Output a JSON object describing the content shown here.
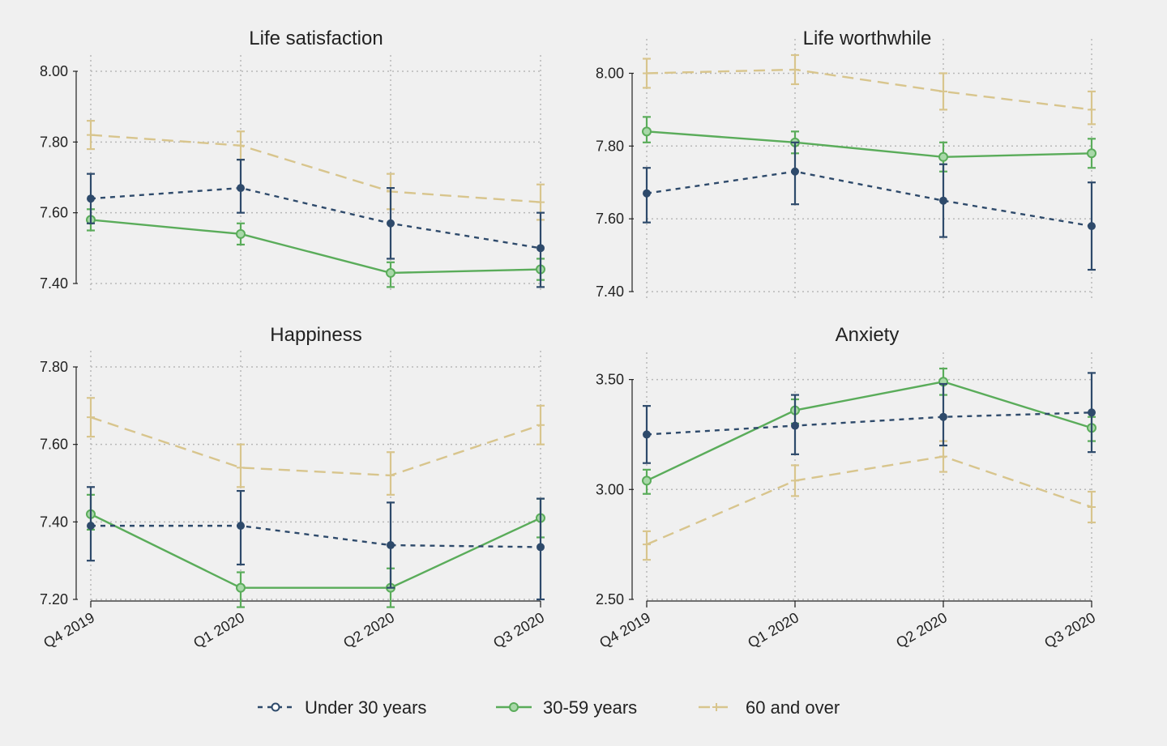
{
  "chart_data": [
    {
      "type": "line",
      "title": "Life satisfaction",
      "categories": [
        "Q4 2019",
        "Q1 2020",
        "Q2 2020",
        "Q3 2020"
      ],
      "ylim": [
        7.4,
        8.0
      ],
      "yticks": [
        7.4,
        7.6,
        7.8,
        8.0
      ],
      "ytick_labels": [
        "7.40",
        "7.60",
        "7.80",
        "8.00"
      ],
      "grid": true,
      "series": [
        {
          "name": "Under 30 years",
          "values": [
            7.64,
            7.67,
            7.57,
            7.5
          ],
          "lower": [
            7.57,
            7.6,
            7.47,
            7.39
          ],
          "upper": [
            7.71,
            7.75,
            7.67,
            7.6
          ]
        },
        {
          "name": "30-59 years",
          "values": [
            7.58,
            7.54,
            7.43,
            7.44
          ],
          "lower": [
            7.55,
            7.51,
            7.39,
            7.41
          ],
          "upper": [
            7.61,
            7.57,
            7.46,
            7.47
          ]
        },
        {
          "name": "60 and over",
          "values": [
            7.82,
            7.79,
            7.66,
            7.63
          ],
          "lower": [
            7.78,
            7.75,
            7.61,
            7.58
          ],
          "upper": [
            7.86,
            7.83,
            7.71,
            7.68
          ]
        }
      ]
    },
    {
      "type": "line",
      "title": "Life worthwhile",
      "categories": [
        "Q4 2019",
        "Q1 2020",
        "Q2 2020",
        "Q3 2020"
      ],
      "ylim": [
        7.4,
        8.05
      ],
      "yticks": [
        7.4,
        7.6,
        7.8,
        8.0
      ],
      "ytick_labels": [
        "7.40",
        "7.60",
        "7.80",
        "8.00"
      ],
      "grid": true,
      "series": [
        {
          "name": "Under 30 years",
          "values": [
            7.67,
            7.73,
            7.65,
            7.58
          ],
          "lower": [
            7.59,
            7.64,
            7.55,
            7.46
          ],
          "upper": [
            7.74,
            7.81,
            7.75,
            7.7
          ]
        },
        {
          "name": "30-59 years",
          "values": [
            7.84,
            7.81,
            7.77,
            7.78
          ],
          "lower": [
            7.81,
            7.78,
            7.73,
            7.74
          ],
          "upper": [
            7.88,
            7.84,
            7.81,
            7.82
          ]
        },
        {
          "name": "60 and over",
          "values": [
            8.0,
            8.01,
            7.95,
            7.9
          ],
          "lower": [
            7.96,
            7.97,
            7.9,
            7.86
          ],
          "upper": [
            8.04,
            8.05,
            8.0,
            7.95
          ]
        }
      ]
    },
    {
      "type": "line",
      "title": "Happiness",
      "categories": [
        "Q4 2019",
        "Q1 2020",
        "Q2 2020",
        "Q3 2020"
      ],
      "ylim": [
        7.2,
        7.8
      ],
      "yticks": [
        7.2,
        7.4,
        7.6,
        7.8
      ],
      "ytick_labels": [
        "7.20",
        "7.40",
        "7.60",
        "7.80"
      ],
      "grid": true,
      "series": [
        {
          "name": "Under 30 years",
          "values": [
            7.39,
            7.39,
            7.34,
            7.335
          ],
          "lower": [
            7.3,
            7.29,
            7.23,
            7.2
          ],
          "upper": [
            7.49,
            7.48,
            7.45,
            7.46
          ]
        },
        {
          "name": "30-59 years",
          "values": [
            7.42,
            7.23,
            7.23,
            7.41
          ],
          "lower": [
            7.38,
            7.18,
            7.18,
            7.36
          ],
          "upper": [
            7.47,
            7.27,
            7.28,
            7.46
          ]
        },
        {
          "name": "60 and over",
          "values": [
            7.67,
            7.54,
            7.52,
            7.65
          ],
          "lower": [
            7.62,
            7.49,
            7.47,
            7.6
          ],
          "upper": [
            7.72,
            7.6,
            7.58,
            7.7
          ]
        }
      ]
    },
    {
      "type": "line",
      "title": "Anxiety",
      "categories": [
        "Q4 2019",
        "Q1 2020",
        "Q2 2020",
        "Q3 2020"
      ],
      "ylim": [
        2.5,
        3.55
      ],
      "yticks": [
        2.5,
        3.0,
        3.5
      ],
      "ytick_labels": [
        "2.50",
        "3.00",
        "3.50"
      ],
      "grid": true,
      "series": [
        {
          "name": "Under 30 years",
          "values": [
            3.25,
            3.29,
            3.33,
            3.35
          ],
          "lower": [
            3.12,
            3.16,
            3.2,
            3.17
          ],
          "upper": [
            3.38,
            3.43,
            3.48,
            3.53
          ]
        },
        {
          "name": "30-59 years",
          "values": [
            3.04,
            3.36,
            3.49,
            3.28
          ],
          "lower": [
            2.98,
            3.3,
            3.43,
            3.22
          ],
          "upper": [
            3.09,
            3.41,
            3.55,
            3.33
          ]
        },
        {
          "name": "60 and over",
          "values": [
            2.75,
            3.04,
            3.15,
            2.92
          ],
          "lower": [
            2.68,
            2.97,
            3.08,
            2.85
          ],
          "upper": [
            2.81,
            3.11,
            3.22,
            2.99
          ]
        }
      ]
    }
  ],
  "legend": {
    "placement": "bottom",
    "items": [
      {
        "name": "Under 30 years",
        "color": "#2e4a6b",
        "dash": "6,6",
        "marker": "circle"
      },
      {
        "name": "30-59 years",
        "color": "#5aac5a",
        "dash": "",
        "marker": "diamond"
      },
      {
        "name": "60 and over",
        "color": "#d8c58d",
        "dash": "14,8",
        "marker": "plus"
      }
    ]
  },
  "colors": {
    "background": "#f0f0f0",
    "grid": "#b8b8b8",
    "axis": "#222222",
    "text": "#222222"
  }
}
